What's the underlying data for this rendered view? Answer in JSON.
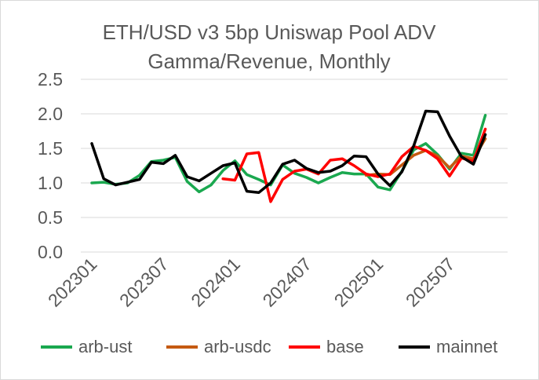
{
  "chart_data": {
    "type": "line",
    "title_lines": [
      "ETH/USD v3 5bp Uniswap Pool ADV",
      "Gamma/Revenue, Monthly"
    ],
    "xlabel": "",
    "ylabel": "",
    "ylim": [
      0,
      2.5
    ],
    "yticks": [
      "0.0",
      "0.5",
      "1.0",
      "1.5",
      "2.0",
      "2.5"
    ],
    "x_tick_labels": [
      {
        "index": 0,
        "label": "202301"
      },
      {
        "index": 6,
        "label": "202307"
      },
      {
        "index": 12,
        "label": "202401"
      },
      {
        "index": 18,
        "label": "202407"
      },
      {
        "index": 24,
        "label": "202501"
      },
      {
        "index": 30,
        "label": "202507"
      }
    ],
    "n_points": 34,
    "grid": "horizontal",
    "legend_position": "bottom",
    "series": [
      {
        "name": "arb-ust",
        "color": "#1aa84f",
        "values": [
          1.0,
          1.01,
          0.98,
          1.0,
          1.11,
          1.31,
          1.33,
          1.37,
          1.02,
          0.87,
          0.97,
          1.18,
          1.32,
          1.12,
          1.05,
          0.97,
          1.26,
          1.14,
          1.08,
          1.0,
          1.08,
          1.15,
          1.13,
          1.13,
          0.94,
          0.9,
          1.17,
          1.48,
          1.57,
          1.41,
          1.2,
          1.43,
          1.4,
          1.98
        ]
      },
      {
        "name": "arb-usdc",
        "color": "#c55a11",
        "values": [
          null,
          null,
          null,
          null,
          null,
          null,
          null,
          null,
          null,
          null,
          null,
          null,
          null,
          null,
          null,
          null,
          null,
          null,
          null,
          null,
          null,
          null,
          null,
          1.11,
          1.13,
          1.12,
          1.26,
          1.4,
          1.47,
          1.39,
          1.22,
          1.39,
          1.35,
          1.64
        ]
      },
      {
        "name": "base",
        "color": "#ff0000",
        "values": [
          null,
          null,
          null,
          null,
          null,
          null,
          null,
          null,
          null,
          null,
          null,
          1.06,
          1.04,
          1.42,
          1.44,
          0.73,
          1.05,
          1.17,
          1.2,
          1.13,
          1.33,
          1.35,
          1.25,
          1.13,
          1.09,
          1.13,
          1.38,
          1.53,
          1.47,
          1.35,
          1.1,
          1.36,
          1.31,
          1.78
        ]
      },
      {
        "name": "mainnet",
        "color": "#000000",
        "values": [
          1.57,
          1.06,
          0.97,
          1.01,
          1.05,
          1.3,
          1.28,
          1.4,
          1.09,
          1.03,
          1.14,
          1.25,
          1.29,
          0.88,
          0.86,
          1.0,
          1.27,
          1.33,
          1.21,
          1.15,
          1.17,
          1.25,
          1.39,
          1.38,
          1.13,
          0.96,
          1.16,
          1.54,
          2.04,
          2.03,
          1.68,
          1.38,
          1.27,
          1.7
        ]
      }
    ]
  }
}
